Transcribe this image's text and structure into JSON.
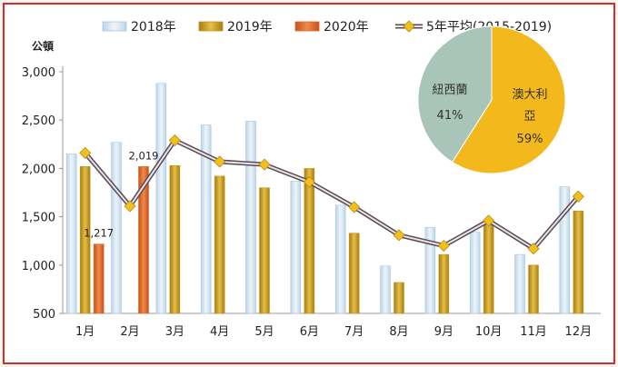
{
  "chart_data": {
    "type": "bar",
    "unit_label": "公頓",
    "categories": [
      "1月",
      "2月",
      "3月",
      "4月",
      "5月",
      "6月",
      "7月",
      "8月",
      "9月",
      "10月",
      "11月",
      "12月"
    ],
    "series": [
      {
        "name": "2018年",
        "kind": "bar",
        "color": "#a9c8e0",
        "values": [
          2150,
          2270,
          2880,
          2450,
          2490,
          1870,
          1620,
          990,
          1390,
          1340,
          1110,
          1810
        ]
      },
      {
        "name": "2019年",
        "kind": "bar",
        "color": "#c7981a",
        "values": [
          2020,
          null,
          2030,
          1920,
          1800,
          2000,
          1330,
          820,
          1110,
          1450,
          1000,
          1560
        ]
      },
      {
        "name": "2020年",
        "kind": "bar",
        "color": "#e06a2a",
        "values": [
          1217,
          2019,
          null,
          null,
          null,
          null,
          null,
          null,
          null,
          null,
          null,
          null
        ]
      },
      {
        "name": "5年平均(2015-2019)",
        "kind": "line",
        "color": "#f2c01e",
        "line_color": "#7a6a75",
        "values": [
          2160,
          1610,
          2290,
          2070,
          2040,
          1860,
          1600,
          1310,
          1200,
          1460,
          1170,
          1710
        ]
      }
    ],
    "data_labels": [
      {
        "series": "2020年",
        "category": "1月",
        "text": "1,217"
      },
      {
        "series": "2020年",
        "category": "2月",
        "text": "2,019"
      }
    ],
    "ylim": [
      500,
      3000
    ],
    "yticks": [
      "500",
      "1,000",
      "1,500",
      "2,000",
      "2,500",
      "3,000"
    ],
    "ytick_values": [
      500,
      1000,
      1500,
      2000,
      2500,
      3000
    ],
    "grid": false,
    "legend_position": "top",
    "inset_pie": {
      "type": "pie",
      "slices": [
        {
          "label": "澳大利亞",
          "value": 59,
          "value_text": "59%",
          "color": "#f2b81c"
        },
        {
          "label": "紐西蘭",
          "value": 41,
          "value_text": "41%",
          "color": "#a9c4b8"
        }
      ]
    }
  },
  "frame_color": "#d72a2a"
}
